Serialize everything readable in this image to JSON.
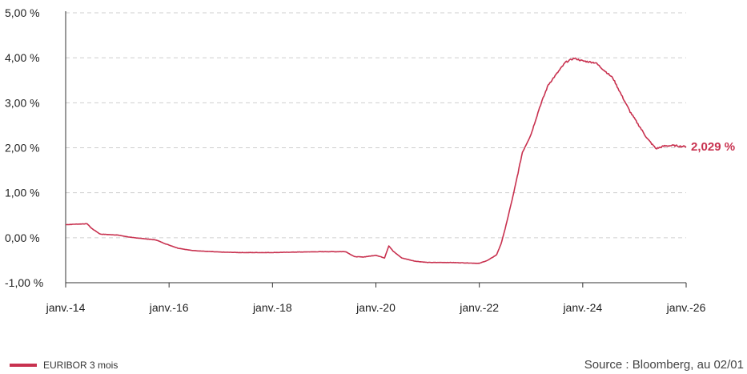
{
  "chart_data": {
    "type": "line",
    "title": "",
    "xlabel": "",
    "ylabel": "",
    "x_ticks": [
      "janv.-14",
      "janv.-16",
      "janv.-18",
      "janv.-20",
      "janv.-22",
      "janv.-24",
      "janv.-26"
    ],
    "y_ticks": [
      "5,00 %",
      "4,00 %",
      "3,00 %",
      "2,00 %",
      "1,00 %",
      "0,00 %",
      "-1,00 %"
    ],
    "xlim": [
      "2014-01",
      "2026-01"
    ],
    "ylim": [
      -1.0,
      5.0
    ],
    "grid": "horizontal-dashed",
    "legend_position": "bottom-left",
    "series": [
      {
        "name": "EURIBOR 3 mois",
        "color": "#c8314f",
        "points": [
          [
            "2014-01",
            0.29
          ],
          [
            "2014-03",
            0.3
          ],
          [
            "2014-06",
            0.31
          ],
          [
            "2014-07",
            0.21
          ],
          [
            "2014-09",
            0.08
          ],
          [
            "2015-01",
            0.06
          ],
          [
            "2015-04",
            0.01
          ],
          [
            "2015-07",
            -0.02
          ],
          [
            "2015-10",
            -0.05
          ],
          [
            "2015-12",
            -0.13
          ],
          [
            "2016-03",
            -0.23
          ],
          [
            "2016-06",
            -0.28
          ],
          [
            "2016-09",
            -0.3
          ],
          [
            "2017-01",
            -0.32
          ],
          [
            "2017-06",
            -0.33
          ],
          [
            "2018-01",
            -0.33
          ],
          [
            "2018-06",
            -0.32
          ],
          [
            "2019-01",
            -0.31
          ],
          [
            "2019-06",
            -0.31
          ],
          [
            "2019-08",
            -0.42
          ],
          [
            "2019-10",
            -0.43
          ],
          [
            "2020-01",
            -0.39
          ],
          [
            "2020-03",
            -0.45
          ],
          [
            "2020-04",
            -0.18
          ],
          [
            "2020-05",
            -0.3
          ],
          [
            "2020-07",
            -0.45
          ],
          [
            "2020-10",
            -0.52
          ],
          [
            "2021-01",
            -0.55
          ],
          [
            "2021-06",
            -0.55
          ],
          [
            "2021-10",
            -0.56
          ],
          [
            "2022-01",
            -0.57
          ],
          [
            "2022-03",
            -0.5
          ],
          [
            "2022-05",
            -0.38
          ],
          [
            "2022-06",
            -0.15
          ],
          [
            "2022-07",
            0.2
          ],
          [
            "2022-09",
            1.0
          ],
          [
            "2022-11",
            1.9
          ],
          [
            "2023-01",
            2.3
          ],
          [
            "2023-03",
            2.9
          ],
          [
            "2023-05",
            3.4
          ],
          [
            "2023-07",
            3.65
          ],
          [
            "2023-09",
            3.9
          ],
          [
            "2023-11",
            3.99
          ],
          [
            "2024-01",
            3.93
          ],
          [
            "2024-04",
            3.89
          ],
          [
            "2024-06",
            3.72
          ],
          [
            "2024-08",
            3.55
          ],
          [
            "2024-10",
            3.17
          ],
          [
            "2024-12",
            2.8
          ],
          [
            "2025-02",
            2.5
          ],
          [
            "2025-04",
            2.2
          ],
          [
            "2025-06",
            1.98
          ],
          [
            "2025-08",
            2.04
          ],
          [
            "2025-10",
            2.05
          ],
          [
            "2025-12",
            2.03
          ],
          [
            "2026-01",
            2.029
          ]
        ]
      }
    ],
    "end_label": "2,029 %"
  },
  "legend": {
    "label": "EURIBOR 3 mois"
  },
  "source": "Source : Bloomberg, au 02/01"
}
